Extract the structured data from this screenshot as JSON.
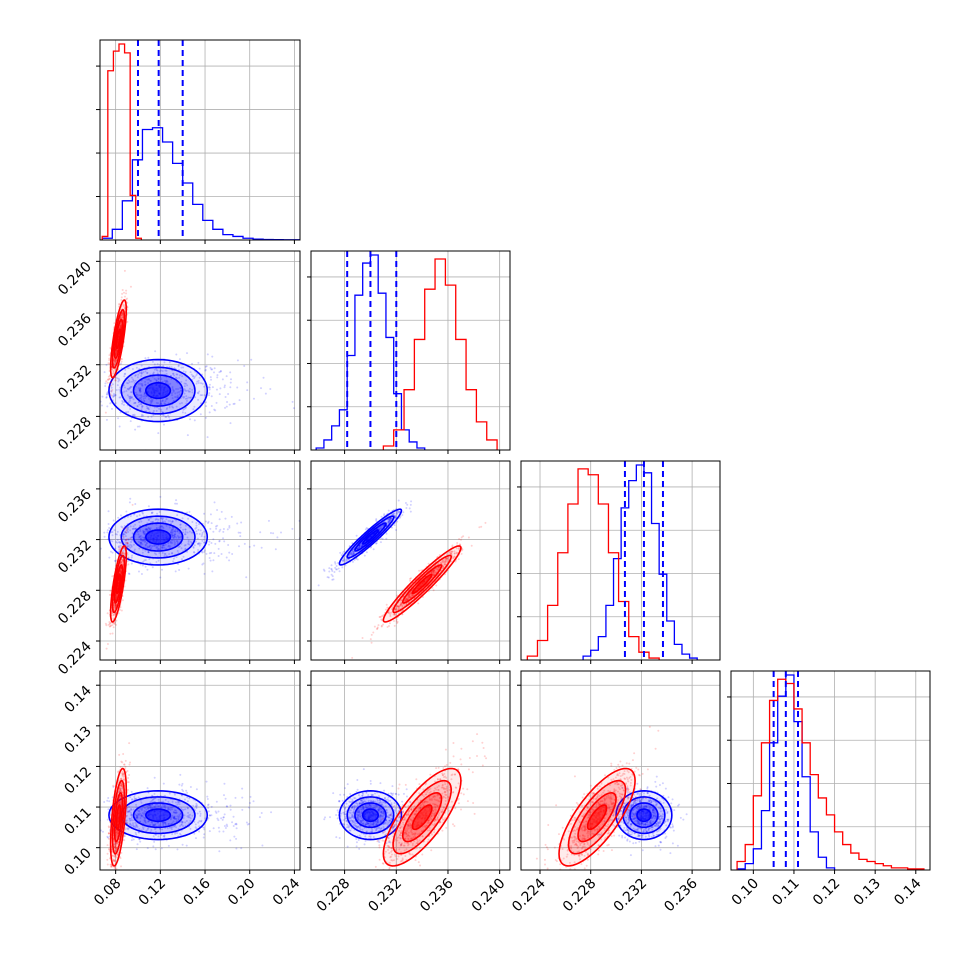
{
  "chart_data": {
    "type": "corner",
    "grid": true,
    "parameters": [
      {
        "ticks": [
          0.08,
          0.12,
          0.16,
          0.2,
          0.24
        ],
        "tick_labels": [
          "0.08",
          "0.12",
          "0.16",
          "0.20",
          "0.24"
        ],
        "range": [
          0.066,
          0.245
        ]
      },
      {
        "ticks": [
          0.228,
          0.232,
          0.236,
          0.24
        ],
        "tick_labels": [
          "0.228",
          "0.232",
          "0.236",
          "0.240"
        ],
        "range": [
          0.2254,
          0.2408
        ]
      },
      {
        "ticks": [
          0.224,
          0.228,
          0.232,
          0.236
        ],
        "tick_labels": [
          "0.224",
          "0.228",
          "0.232",
          "0.236"
        ],
        "range": [
          0.2225,
          0.2382
        ]
      },
      {
        "ticks": [
          0.1,
          0.11,
          0.12,
          0.13,
          0.14
        ],
        "tick_labels": [
          "0.10",
          "0.11",
          "0.12",
          "0.13",
          "0.14"
        ],
        "range": [
          0.0945,
          0.1435
        ]
      }
    ],
    "series": [
      {
        "color": "#0000ff",
        "means": [
          0.118,
          0.23,
          0.2322,
          0.108
        ],
        "sigmas": [
          0.022,
          0.0012,
          0.0011,
          0.003
        ],
        "quantiles": [
          [
            0.1,
            0.1185,
            0.14
          ],
          [
            0.2282,
            0.23,
            0.232
          ],
          [
            0.2307,
            0.2322,
            0.2337
          ],
          [
            0.105,
            0.108,
            0.111
          ]
        ],
        "correlations": {
          "1-0": 0.0,
          "2-0": 0.0,
          "2-1": 0.95,
          "3-0": 0.0,
          "3-1": 0.0,
          "3-2": 0.0
        },
        "histograms": [
          {
            "edges": [
              0.068,
              0.077,
              0.086,
              0.095,
              0.104,
              0.113,
              0.122,
              0.131,
              0.14,
              0.149,
              0.158,
              0.167,
              0.176,
              0.185,
              0.194,
              0.203,
              0.212,
              0.221,
              0.23,
              0.239,
              0.245
            ],
            "counts": [
              1,
              6,
              22,
              45,
              62,
              63,
              55,
              43,
              32,
              20,
              11,
              6,
              3,
              2,
              1,
              0.5,
              0.3,
              0.2,
              0.1,
              0.1
            ]
          },
          {
            "edges": [
              0.2258,
              0.2264,
              0.227,
              0.2276,
              0.2282,
              0.2288,
              0.2294,
              0.23,
              0.2306,
              0.2312,
              0.2318,
              0.2324,
              0.233,
              0.2336,
              0.2342
            ],
            "counts": [
              1,
              5,
              12,
              20,
              47,
              77,
              93,
              97,
              78,
              56,
              28,
              10,
              4,
              1
            ]
          },
          {
            "edges": [
              0.2274,
              0.228,
              0.2286,
              0.2292,
              0.2298,
              0.2304,
              0.231,
              0.2316,
              0.2322,
              0.2328,
              0.2334,
              0.234,
              0.2346,
              0.2352,
              0.2358,
              0.2364
            ],
            "counts": [
              2,
              5,
              12,
              28,
              52,
              78,
              92,
              100,
              96,
              70,
              44,
              20,
              8,
              3,
              1
            ]
          },
          {
            "edges": [
              0.096,
              0.098,
              0.1,
              0.102,
              0.104,
              0.106,
              0.108,
              0.11,
              0.112,
              0.114,
              0.116,
              0.118,
              0.12
            ],
            "counts": [
              0.5,
              3,
              10,
              28,
              60,
              82,
              92,
              70,
              44,
              18,
              6,
              1
            ]
          }
        ]
      },
      {
        "color": "#ff0000",
        "means": [
          0.0825,
          0.234,
          0.2285,
          0.1075
        ],
        "sigmas": [
          0.0035,
          0.0015,
          0.0015,
          0.006
        ],
        "correlations": {
          "1-0": 0.75,
          "2-0": 0.75,
          "2-1": 0.95,
          "3-0": 0.55,
          "3-1": 0.75,
          "3-2": 0.75
        },
        "histograms": [
          {
            "edges": [
              0.068,
              0.073,
              0.078,
              0.083,
              0.088,
              0.093,
              0.098,
              0.103
            ],
            "counts": [
              2,
              95,
              106,
              110,
              105,
              25,
              1
            ]
          },
          {
            "edges": [
              0.231,
              0.2318,
              0.2326,
              0.2334,
              0.2342,
              0.235,
              0.2358,
              0.2366,
              0.2374,
              0.2382,
              0.239,
              0.2398
            ],
            "counts": [
              2,
              10,
              30,
              55,
              80,
              95,
              82,
              55,
              30,
              14,
              5
            ]
          },
          {
            "edges": [
              0.223,
              0.2238,
              0.2246,
              0.2254,
              0.2262,
              0.227,
              0.2278,
              0.2286,
              0.2294,
              0.2302,
              0.231,
              0.2318,
              0.2326,
              0.2334
            ],
            "counts": [
              2,
              10,
              28,
              55,
              80,
              98,
              95,
              80,
              55,
              30,
              12,
              4,
              1
            ]
          },
          {
            "edges": [
              0.096,
              0.098,
              0.1,
              0.102,
              0.104,
              0.106,
              0.108,
              0.11,
              0.112,
              0.114,
              0.116,
              0.118,
              0.12,
              0.122,
              0.124,
              0.126,
              0.128,
              0.13,
              0.132,
              0.134,
              0.136,
              0.138,
              0.14,
              0.142
            ],
            "counts": [
              4,
              12,
              35,
              60,
              80,
              90,
              88,
              76,
              60,
              45,
              34,
              26,
              18,
              12,
              8,
              5,
              4,
              3,
              2,
              1,
              1,
              0.5,
              0.5
            ]
          }
        ]
      }
    ]
  }
}
